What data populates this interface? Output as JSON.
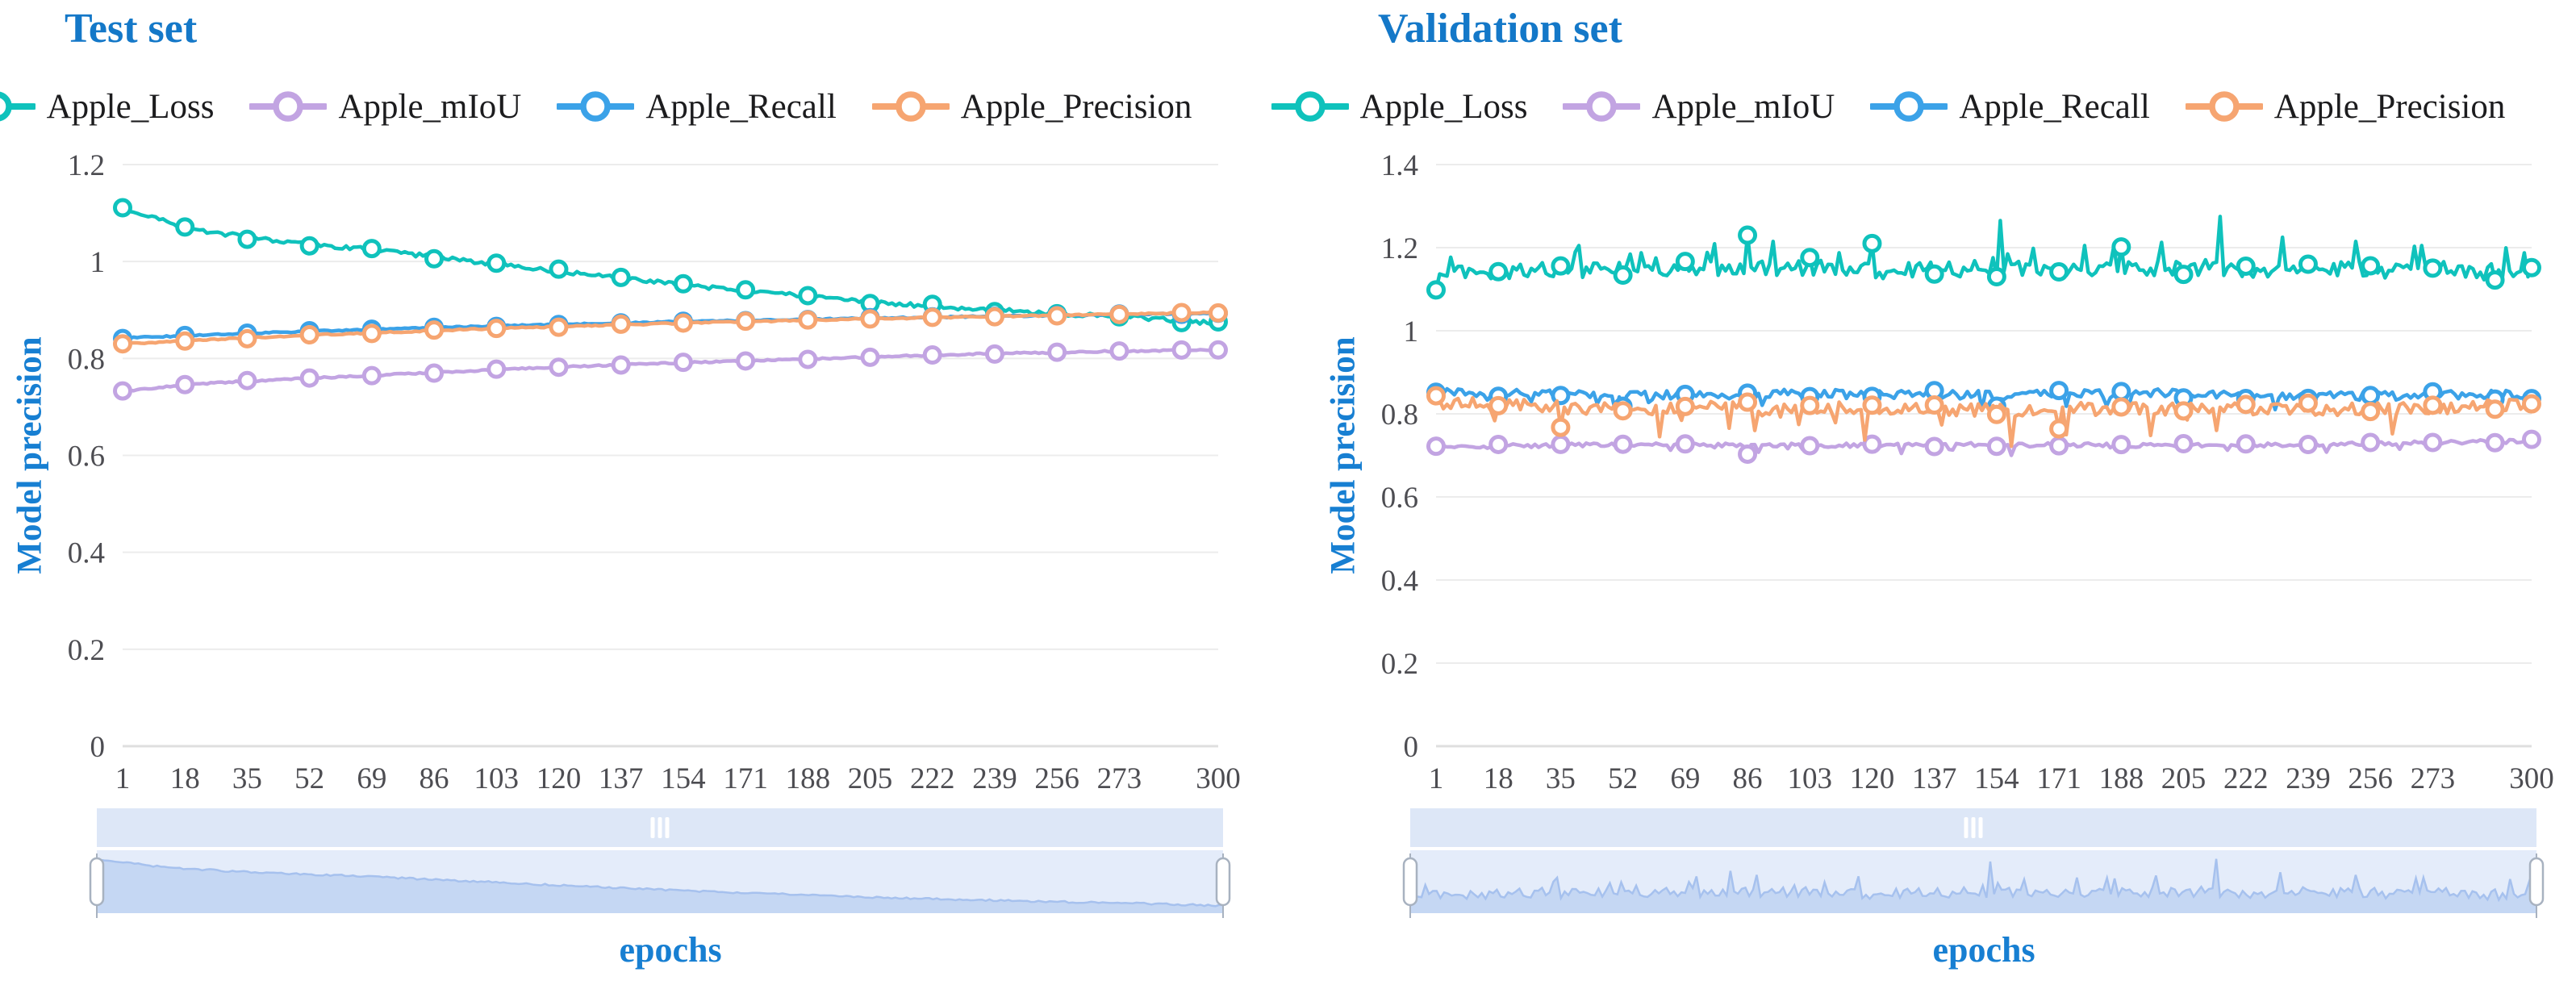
{
  "colors": {
    "title_blue": "#1478c8",
    "axis_name_blue": "#177fd2",
    "tick_gray": "#4d4d52",
    "grid_line": "#ececec",
    "axis_zero_line": "#dfdfdf",
    "marker_fill": "#ffffff",
    "slider_track": "#e4ecfa",
    "slider_strip": "#dde7f7",
    "slider_shadow_fill": "#c5d7f3",
    "slider_shadow_line": "#a6c1ee",
    "slider_handle_fill": "#ffffff",
    "slider_handle_border": "#a8b2c0",
    "series_teal": "#0fc2bc",
    "series_purple": "#c2a4e2",
    "series_blue": "#3ba2e8",
    "series_orange": "#f6a571"
  },
  "chart_data": [
    {
      "type": "line",
      "title": "Test set",
      "xlabel": "epochs",
      "ylabel": "Model precision",
      "x_range": [
        1,
        300
      ],
      "xticks": [
        1,
        18,
        35,
        52,
        69,
        86,
        103,
        120,
        137,
        154,
        171,
        188,
        205,
        222,
        239,
        256,
        273,
        300
      ],
      "yticks": [
        0,
        0.2,
        0.4,
        0.6,
        0.8,
        1,
        1.2
      ],
      "ylim": [
        0,
        1.2
      ],
      "grid": "horizontal-only",
      "legend_position": "top",
      "marker_every": 17,
      "datazoom": {
        "shadow_series": "Apple_Loss",
        "grip_icon": "|||",
        "range": [
          1,
          300
        ]
      },
      "series": [
        {
          "name": "Apple_Loss",
          "color": "#0fc2bc",
          "noise": 0.0045,
          "seed": 11,
          "keypoints": {
            "x": [
              1,
              10,
              18,
              35,
              52,
              69,
              86,
              103,
              120,
              137,
              154,
              171,
              188,
              205,
              222,
              239,
              256,
              273,
              290,
              300
            ],
            "y": [
              1.11,
              1.09,
              1.07,
              1.05,
              1.035,
              1.025,
              1.01,
              0.995,
              0.98,
              0.965,
              0.952,
              0.94,
              0.928,
              0.917,
              0.908,
              0.9,
              0.893,
              0.886,
              0.878,
              0.873
            ]
          }
        },
        {
          "name": "Apple_mIoU",
          "color": "#c2a4e2",
          "noise": 0.0016,
          "seed": 22,
          "keypoints": {
            "x": [
              1,
              18,
              35,
              69,
              103,
              137,
              171,
              205,
              239,
              273,
              300
            ],
            "y": [
              0.732,
              0.746,
              0.753,
              0.765,
              0.777,
              0.787,
              0.795,
              0.803,
              0.81,
              0.815,
              0.818
            ]
          }
        },
        {
          "name": "Apple_Recall",
          "color": "#3ba2e8",
          "noise": 0.0014,
          "seed": 33,
          "keypoints": {
            "x": [
              1,
              52,
              103,
              154,
              205,
              256,
              300
            ],
            "y": [
              0.842,
              0.856,
              0.867,
              0.876,
              0.883,
              0.889,
              0.893
            ]
          }
        },
        {
          "name": "Apple_Precision",
          "color": "#f6a571",
          "noise": 0.0014,
          "seed": 44,
          "keypoints": {
            "x": [
              1,
              52,
              103,
              154,
              205,
              256,
              300
            ],
            "y": [
              0.83,
              0.848,
              0.862,
              0.873,
              0.882,
              0.889,
              0.895
            ]
          }
        }
      ]
    },
    {
      "type": "line",
      "title": "Validation set",
      "xlabel": "epochs",
      "ylabel": "Model precision",
      "x_range": [
        1,
        300
      ],
      "xticks": [
        1,
        18,
        35,
        52,
        69,
        86,
        103,
        120,
        137,
        154,
        171,
        188,
        205,
        222,
        239,
        256,
        273,
        300
      ],
      "yticks": [
        0,
        0.2,
        0.4,
        0.6,
        0.8,
        1,
        1.2,
        1.4
      ],
      "ylim": [
        0,
        1.4
      ],
      "grid": "horizontal-only",
      "legend_position": "top",
      "marker_every": 17,
      "datazoom": {
        "shadow_series": "Apple_Loss",
        "grip_icon": "|||",
        "range": [
          1,
          300
        ]
      },
      "series": [
        {
          "name": "Apple_Loss",
          "color": "#0fc2bc",
          "noise": 0.02,
          "seed": 55,
          "spike_prob": 0.1,
          "spike_max": 0.055,
          "spike_dir": 1,
          "keypoints": {
            "x": [
              1,
              8,
              30,
              60,
              90,
              120,
              150,
              180,
              210,
              240,
              270,
              300
            ],
            "y": [
              1.115,
              1.14,
              1.148,
              1.145,
              1.152,
              1.145,
              1.15,
              1.148,
              1.152,
              1.145,
              1.148,
              1.132
            ]
          },
          "spikes": [
            [
              40,
              1.205
            ],
            [
              86,
              1.23
            ],
            [
              93,
              1.215
            ],
            [
              120,
              1.21
            ],
            [
              155,
              1.265
            ],
            [
              178,
              1.205
            ],
            [
              215,
              1.275
            ],
            [
              232,
              1.225
            ],
            [
              252,
              1.215
            ],
            [
              270,
              1.205
            ]
          ]
        },
        {
          "name": "Apple_mIoU",
          "color": "#c2a4e2",
          "noise": 0.005,
          "seed": 66,
          "spike_prob": 0.05,
          "spike_max": 0.02,
          "spike_dir": -1,
          "keypoints": {
            "x": [
              1,
              50,
              100,
              150,
              200,
              250,
              300
            ],
            "y": [
              0.72,
              0.726,
              0.724,
              0.726,
              0.724,
              0.727,
              0.735
            ]
          },
          "spikes": [
            [
              86,
              0.703
            ],
            [
              158,
              0.7
            ],
            [
              240,
              0.712
            ]
          ]
        },
        {
          "name": "Apple_Recall",
          "color": "#3ba2e8",
          "noise": 0.011,
          "seed": 77,
          "spike_prob": 0.05,
          "spike_max": 0.03,
          "spike_dir": -1,
          "keypoints": {
            "x": [
              1,
              50,
              100,
              150,
              200,
              250,
              300
            ],
            "y": [
              0.852,
              0.843,
              0.848,
              0.845,
              0.849,
              0.843,
              0.846
            ]
          },
          "spikes": [
            [
              50,
              0.805
            ],
            [
              150,
              0.812
            ],
            [
              230,
              0.81
            ]
          ]
        },
        {
          "name": "Apple_Precision",
          "color": "#f6a571",
          "noise": 0.016,
          "seed": 88,
          "spike_prob": 0.07,
          "spike_max": 0.05,
          "spike_dir": -1,
          "keypoints": {
            "x": [
              1,
              50,
              100,
              150,
              200,
              250,
              300
            ],
            "y": [
              0.828,
              0.812,
              0.815,
              0.81,
              0.815,
              0.81,
              0.82
            ]
          },
          "spikes": [
            [
              62,
              0.745
            ],
            [
              88,
              0.76
            ],
            [
              118,
              0.737
            ],
            [
              158,
              0.722
            ],
            [
              173,
              0.75
            ],
            [
              196,
              0.748
            ],
            [
              262,
              0.752
            ]
          ]
        }
      ]
    }
  ]
}
